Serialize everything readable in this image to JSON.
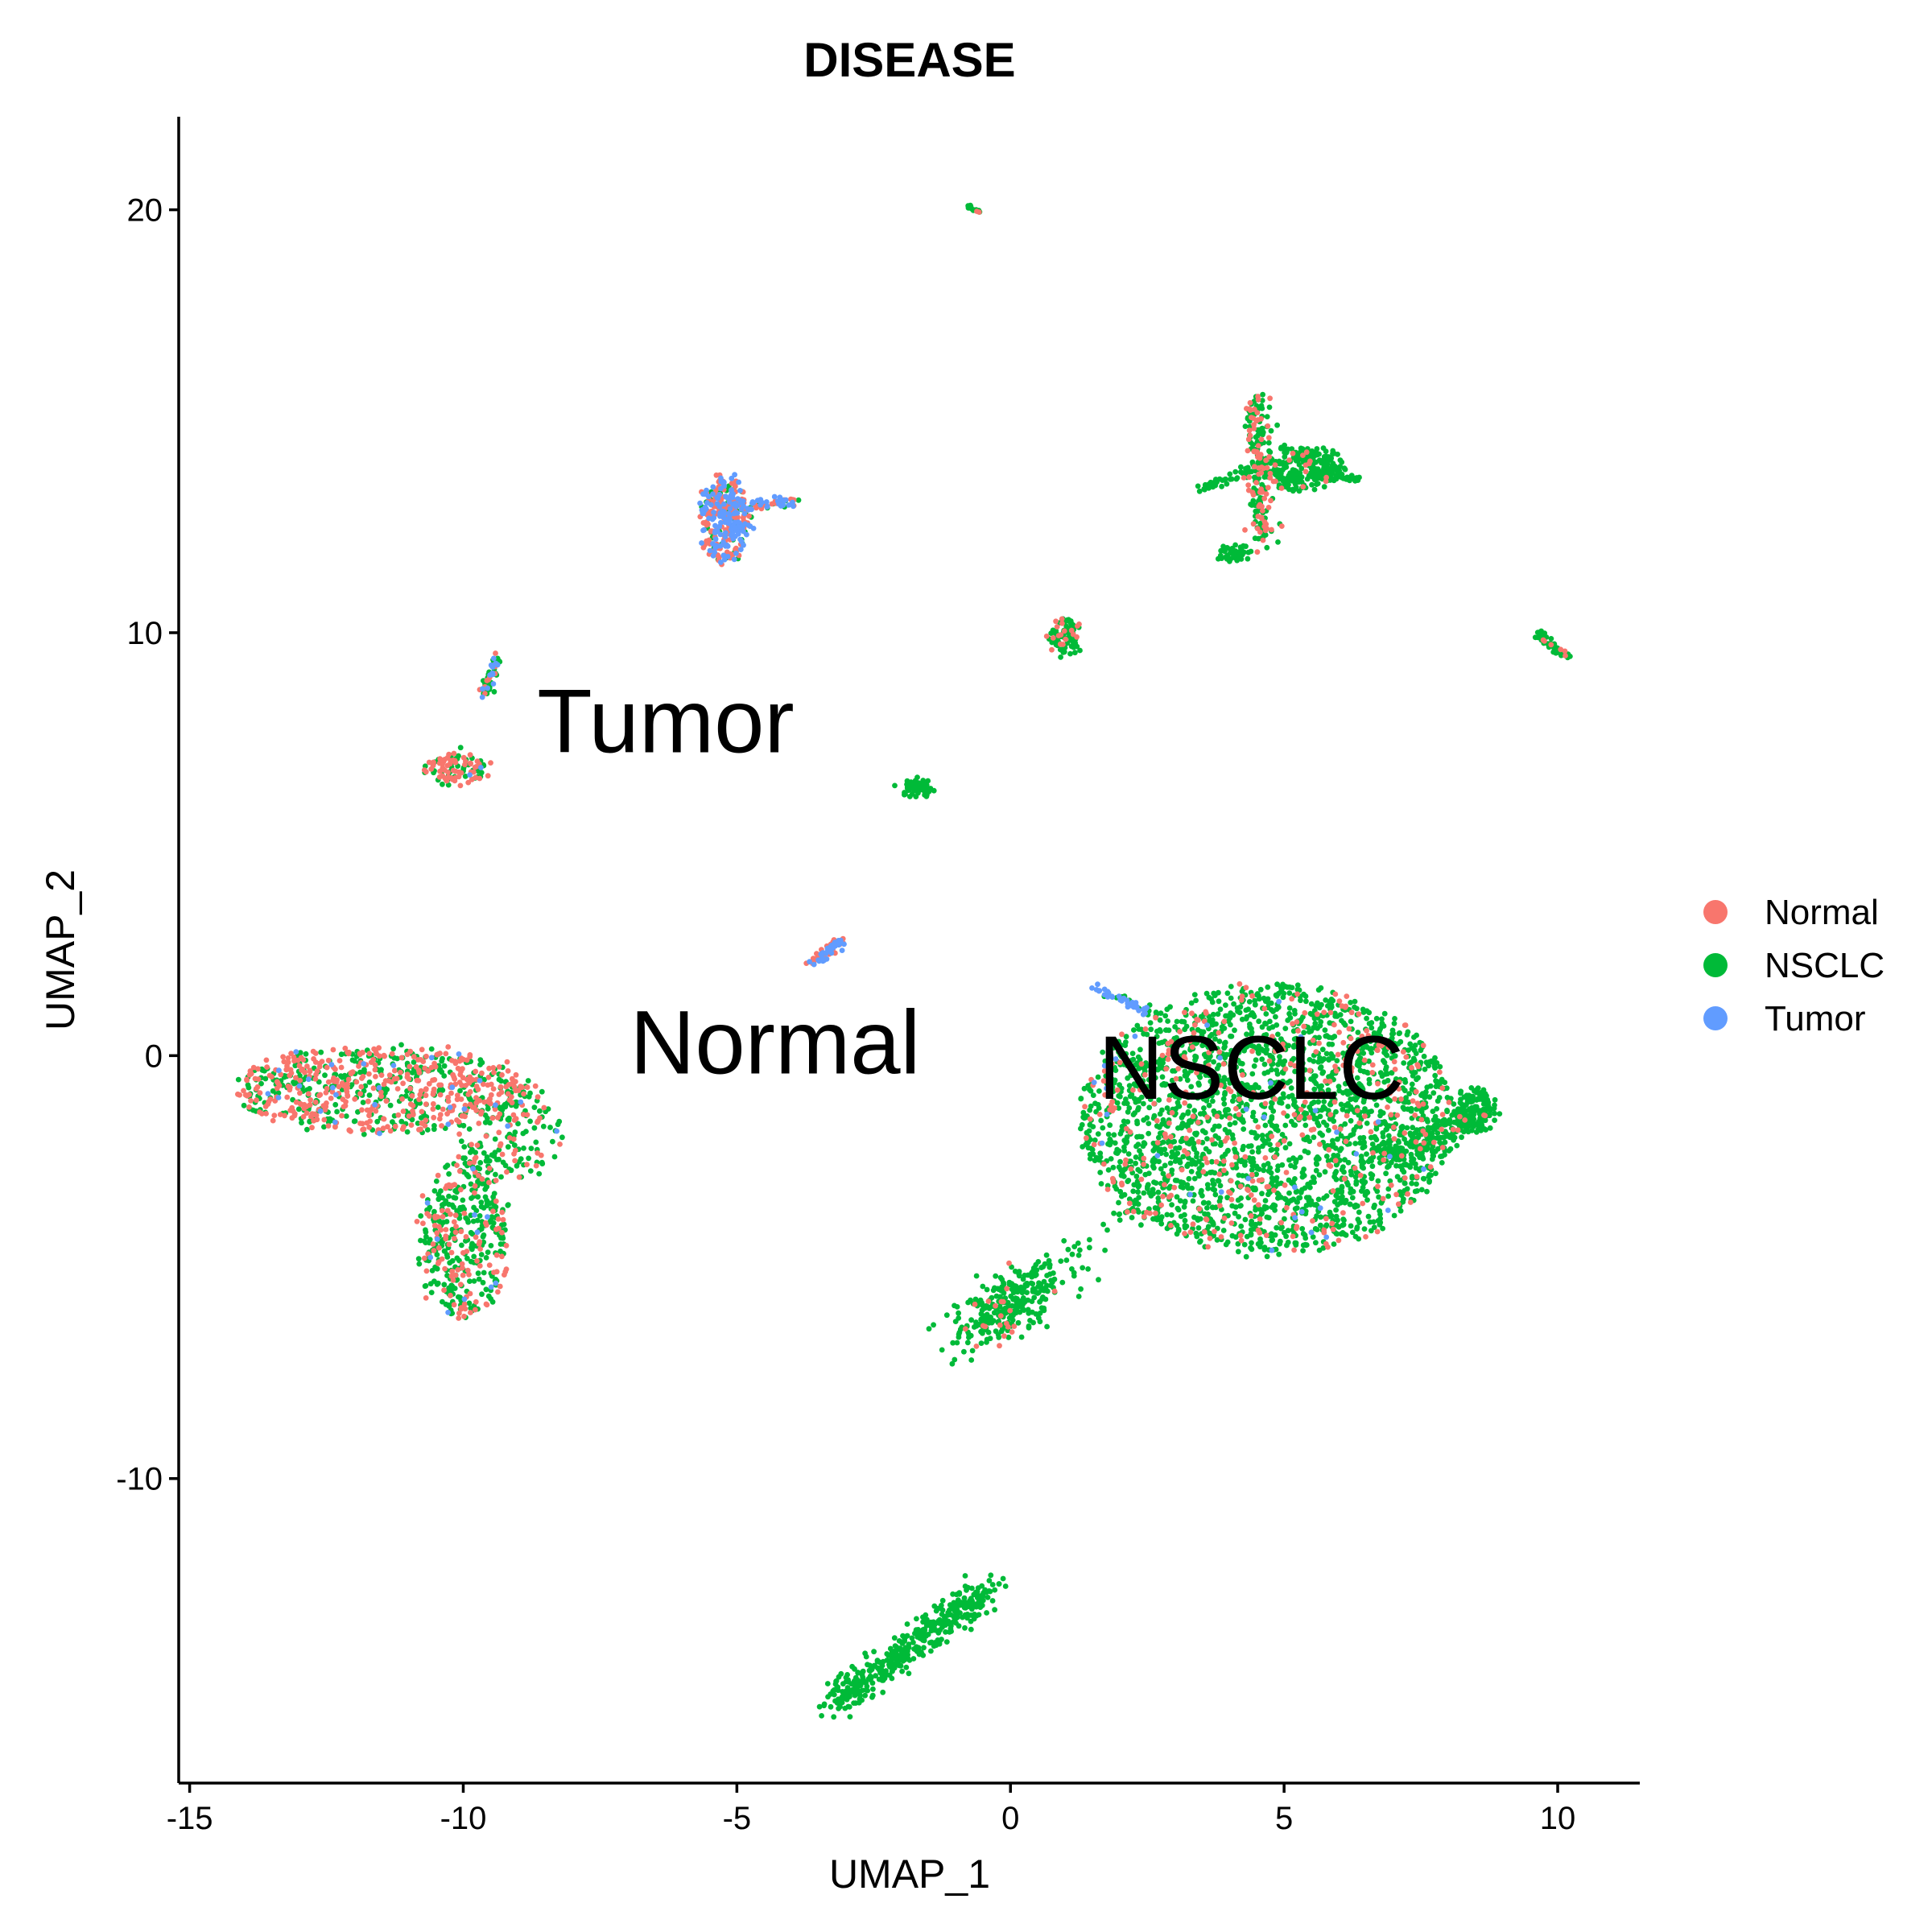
{
  "chart_data": {
    "type": "scatter",
    "title": "DISEASE",
    "xlabel": "UMAP_1",
    "ylabel": "UMAP_2",
    "xlim": [
      -15.2,
      11.5
    ],
    "ylim": [
      -17.2,
      22.2
    ],
    "x_ticks": [
      -15,
      -10,
      -5,
      0,
      5,
      10
    ],
    "x_tick_labels": [
      "-15",
      "-10",
      "-5",
      "0",
      "5",
      "10"
    ],
    "y_ticks": [
      -10,
      0,
      10,
      20
    ],
    "y_tick_labels": [
      "-10",
      "0",
      "10",
      "20"
    ],
    "grid": false,
    "legend_position": "right",
    "series": [
      {
        "name": "Normal",
        "color": "#F8766D"
      },
      {
        "name": "NSCLC",
        "color": "#00BA38"
      },
      {
        "name": "Tumor",
        "color": "#619CFF"
      }
    ],
    "annotations": [
      {
        "text": "Tumor",
        "x": -6.3,
        "y": 7.9
      },
      {
        "text": "Normal",
        "x": -4.3,
        "y": 0.3
      },
      {
        "text": "NSCLC",
        "x": 4.4,
        "y": -0.3
      }
    ],
    "clusters": [
      {
        "name": "main-nsclc-cluster",
        "shape": "ellipse",
        "cx": 4.7,
        "cy": -1.5,
        "rx": 3.4,
        "ry": 3.2,
        "n": 2600,
        "mix": [
          0.14,
          0.85,
          0.01
        ]
      },
      {
        "name": "nsclc-right-arm",
        "shape": "line",
        "x1": 7.0,
        "y1": -2.4,
        "x2": 8.6,
        "y2": -1.3,
        "spread": 0.4,
        "n": 160,
        "mix": [
          0.05,
          0.95,
          0
        ]
      },
      {
        "name": "nsclc-right-blob",
        "shape": "ellipse",
        "cx": 8.5,
        "cy": -1.3,
        "rx": 0.4,
        "ry": 0.5,
        "n": 120,
        "mix": [
          0.03,
          0.97,
          0
        ]
      },
      {
        "name": "nsclc-left-tumor-streak",
        "shape": "line",
        "x1": 1.5,
        "y1": 1.6,
        "x2": 2.6,
        "y2": 1.0,
        "spread": 0.15,
        "n": 45,
        "mix": [
          0,
          0.2,
          0.8
        ]
      },
      {
        "name": "lower-elongated-cluster",
        "shape": "line",
        "x1": -0.8,
        "y1": -6.6,
        "x2": 0.7,
        "y2": -5.2,
        "spread": 0.6,
        "n": 300,
        "mix": [
          0.1,
          0.9,
          0
        ]
      },
      {
        "name": "bridge-to-nsclc",
        "shape": "line",
        "x1": 1.0,
        "y1": -4.8,
        "x2": 2.7,
        "y2": -3.2,
        "spread": 0.25,
        "n": 25,
        "mix": [
          0,
          1,
          0
        ]
      },
      {
        "name": "bottom-streak-cluster",
        "shape": "line",
        "x1": -3.2,
        "y1": -15.3,
        "x2": -0.4,
        "y2": -12.6,
        "spread": 0.35,
        "n": 450,
        "mix": [
          0,
          1,
          0
        ]
      },
      {
        "name": "left-big-cluster-top",
        "shape": "ellipse",
        "cx": -11.5,
        "cy": -0.8,
        "rx": 2.7,
        "ry": 1.0,
        "n": 750,
        "mix": [
          0.55,
          0.42,
          0.03
        ]
      },
      {
        "name": "left-big-cluster-right",
        "shape": "ellipse",
        "cx": -9.2,
        "cy": -1.8,
        "rx": 1.0,
        "ry": 1.1,
        "n": 180,
        "mix": [
          0.3,
          0.68,
          0.02
        ]
      },
      {
        "name": "left-big-cluster-stem",
        "shape": "ellipse",
        "cx": -10.0,
        "cy": -4.3,
        "rx": 0.8,
        "ry": 1.9,
        "n": 420,
        "mix": [
          0.28,
          0.7,
          0.02
        ]
      },
      {
        "name": "tumor-top-cluster",
        "shape": "ellipse",
        "cx": -5.2,
        "cy": 12.7,
        "rx": 0.45,
        "ry": 1.0,
        "n": 320,
        "mix": [
          0.4,
          0.2,
          0.4
        ]
      },
      {
        "name": "tumor-top-tail",
        "shape": "line",
        "x1": -4.8,
        "y1": 13.0,
        "x2": -3.9,
        "y2": 13.1,
        "spread": 0.12,
        "n": 50,
        "mix": [
          0.4,
          0.1,
          0.5
        ]
      },
      {
        "name": "small-left-streak",
        "shape": "line",
        "x1": -9.6,
        "y1": 8.5,
        "x2": -9.4,
        "y2": 9.4,
        "spread": 0.12,
        "n": 60,
        "mix": [
          0.2,
          0.6,
          0.2
        ]
      },
      {
        "name": "small-left-blob",
        "shape": "ellipse",
        "cx": -10.1,
        "cy": 6.8,
        "rx": 0.6,
        "ry": 0.35,
        "n": 110,
        "mix": [
          0.55,
          0.43,
          0.02
        ]
      },
      {
        "name": "center-tiny-cluster",
        "shape": "ellipse",
        "cx": -1.7,
        "cy": 6.3,
        "rx": 0.3,
        "ry": 0.2,
        "n": 55,
        "mix": [
          0,
          1,
          0
        ]
      },
      {
        "name": "center-tumor-blob",
        "shape": "line",
        "x1": -3.6,
        "y1": 2.2,
        "x2": -3.1,
        "y2": 2.7,
        "spread": 0.12,
        "n": 70,
        "mix": [
          0.5,
          0,
          0.5
        ]
      },
      {
        "name": "right-mid-cluster",
        "shape": "ellipse",
        "cx": 1.0,
        "cy": 9.9,
        "rx": 0.25,
        "ry": 0.45,
        "n": 90,
        "mix": [
          0.2,
          0.8,
          0
        ]
      },
      {
        "name": "far-right-streak",
        "shape": "line",
        "x1": 9.6,
        "y1": 10.0,
        "x2": 10.2,
        "y2": 9.4,
        "spread": 0.08,
        "n": 45,
        "mix": [
          0.2,
          0.8,
          0
        ]
      },
      {
        "name": "top-tiny-streak",
        "shape": "line",
        "x1": -0.8,
        "y1": 20.1,
        "x2": -0.5,
        "y2": 19.9,
        "spread": 0.05,
        "n": 15,
        "mix": [
          0.2,
          0.8,
          0
        ]
      },
      {
        "name": "upper-right-vertical",
        "shape": "line",
        "x1": 4.5,
        "y1": 15.6,
        "x2": 4.6,
        "y2": 12.0,
        "spread": 0.25,
        "n": 200,
        "mix": [
          0.35,
          0.65,
          0
        ]
      },
      {
        "name": "upper-right-body",
        "shape": "ellipse",
        "cx": 5.3,
        "cy": 13.9,
        "rx": 0.8,
        "ry": 0.5,
        "n": 260,
        "mix": [
          0.08,
          0.92,
          0
        ]
      },
      {
        "name": "upper-right-arm-right",
        "shape": "line",
        "x1": 5.5,
        "y1": 13.8,
        "x2": 6.4,
        "y2": 13.6,
        "spread": 0.1,
        "n": 40,
        "mix": [
          0,
          1,
          0
        ]
      },
      {
        "name": "upper-right-arm-left",
        "shape": "line",
        "x1": 3.5,
        "y1": 13.4,
        "x2": 4.5,
        "y2": 13.9,
        "spread": 0.12,
        "n": 40,
        "mix": [
          0,
          1,
          0
        ]
      },
      {
        "name": "upper-right-lower-blob",
        "shape": "ellipse",
        "cx": 4.1,
        "cy": 11.9,
        "rx": 0.25,
        "ry": 0.2,
        "n": 45,
        "mix": [
          0,
          1,
          0
        ]
      }
    ]
  }
}
